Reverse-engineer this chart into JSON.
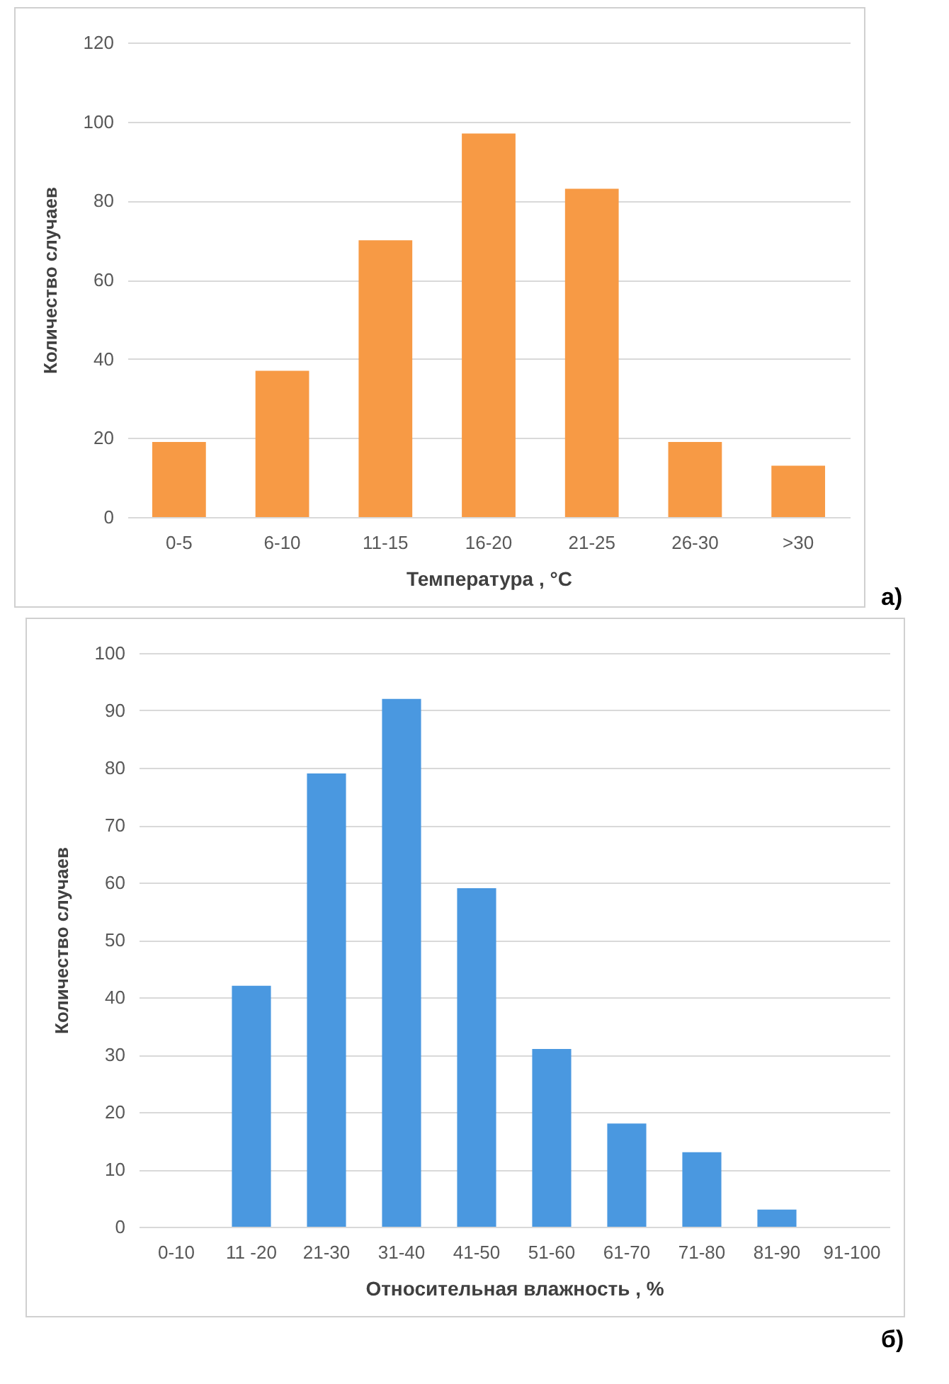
{
  "chart_data": [
    {
      "type": "bar",
      "xlabel": "Температура , °C",
      "ylabel": "Количество случаев",
      "categories": [
        "0-5",
        "6-10",
        "11-15",
        "16-20",
        "21-25",
        "26-30",
        ">30"
      ],
      "values": [
        19,
        37,
        70,
        97,
        83,
        19,
        13
      ],
      "color": "#f79a45",
      "ylim": [
        0,
        120
      ],
      "yticks": [
        0,
        20,
        40,
        60,
        80,
        100,
        120
      ],
      "grid": "y",
      "annotations": [
        "а)"
      ]
    },
    {
      "type": "bar",
      "xlabel": "Относительная  влажность , %",
      "ylabel": "Количество случаев",
      "categories": [
        "0-10",
        "11 -20",
        "21-30",
        "31-40",
        "41-50",
        "51-60",
        "61-70",
        "71-80",
        "81-90",
        "91-100"
      ],
      "values": [
        0,
        42,
        79,
        92,
        59,
        31,
        18,
        13,
        3,
        0
      ],
      "color": "#4a98e0",
      "ylim": [
        0,
        100
      ],
      "yticks": [
        0,
        10,
        20,
        30,
        40,
        50,
        60,
        70,
        80,
        90,
        100
      ],
      "grid": "y",
      "annotations": [
        "б)"
      ]
    }
  ]
}
